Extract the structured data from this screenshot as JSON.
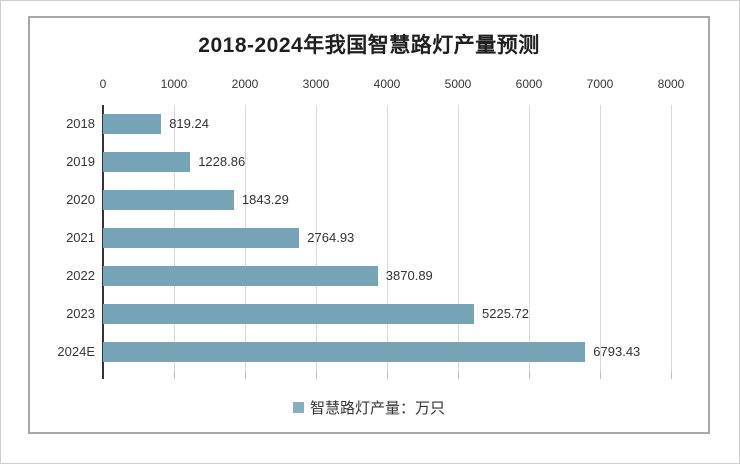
{
  "chart_data": {
    "type": "bar",
    "orientation": "horizontal",
    "title": "2018-2024年我国智慧路灯产量预测",
    "categories": [
      "2018",
      "2019",
      "2020",
      "2021",
      "2022",
      "2023",
      "2024E"
    ],
    "values": [
      819.24,
      1228.86,
      1843.29,
      2764.93,
      3870.89,
      5225.72,
      6793.43
    ],
    "value_labels": [
      "819.24",
      "1228.86",
      "1843.29",
      "2764.93",
      "3870.89",
      "5225.72",
      "6793.43"
    ],
    "x_ticks": [
      "0",
      "1000",
      "2000",
      "3000",
      "4000",
      "5000",
      "6000",
      "7000",
      "8000"
    ],
    "xlim": [
      0,
      8000
    ],
    "axis_position": "top",
    "grid": "vertical",
    "legend_position": "bottom",
    "legend": [
      {
        "label": "智慧路灯产量：万只",
        "marker": "square"
      }
    ]
  },
  "colors": {
    "bar": "#76a3b5",
    "legend_marker": "#87afc0",
    "grid": "#d9d9d9",
    "axis_line": "#333333",
    "tick_mark": "#bfbfbf",
    "text": "#363636",
    "title_text": "#1f1f1f",
    "frame_border": "#a8a8a8"
  }
}
